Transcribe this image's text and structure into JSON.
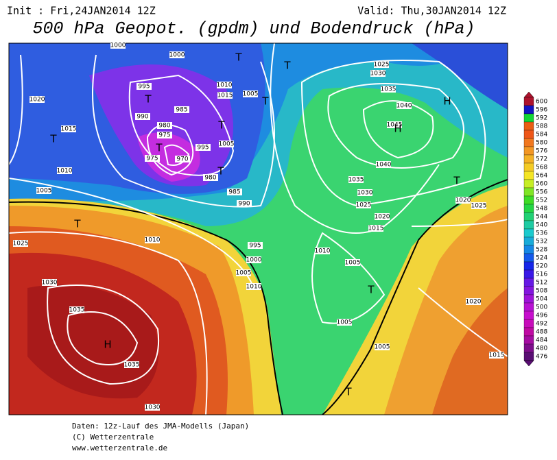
{
  "header": {
    "init": "Init : Fri,24JAN2014 12Z",
    "valid": "Valid: Thu,30JAN2014 12Z",
    "title": "500 hPa Geopot. (gpdm) und Bodendruck (hPa)"
  },
  "isobar_labels": [
    1000,
    1000,
    1020,
    995,
    990,
    985,
    980,
    975,
    975,
    970,
    995,
    1005,
    1010,
    1015,
    1005,
    980,
    985,
    990,
    1015,
    1010,
    1005,
    1010,
    1025,
    1030,
    1035,
    1035,
    1030,
    995,
    1000,
    1005,
    1010,
    1010,
    1005,
    1005,
    1005,
    1015,
    1020,
    1025,
    1030,
    1035,
    1040,
    1045,
    1040,
    1035,
    1030,
    1025,
    1020,
    1025,
    1020,
    1015
  ],
  "pressure_centers": [
    "T",
    "T",
    "T",
    "T",
    "T",
    "T",
    "T",
    "T",
    "T",
    "T",
    "T",
    "T",
    "H",
    "H",
    "H"
  ],
  "colorbar": {
    "labels": [
      600,
      596,
      592,
      588,
      584,
      580,
      576,
      572,
      568,
      564,
      560,
      556,
      552,
      548,
      544,
      540,
      536,
      532,
      528,
      524,
      520,
      516,
      512,
      508,
      504,
      500,
      496,
      492,
      488,
      484,
      480,
      476
    ]
  },
  "footer": [
    "Daten: 12z-Lauf des JMA-Modells (Japan)",
    "(C) Wetterzentrale",
    "www.wetterzentrale.de"
  ]
}
